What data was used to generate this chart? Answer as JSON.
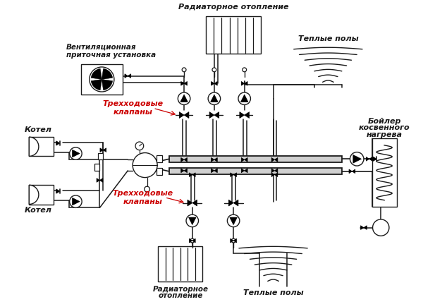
{
  "bg_color": "#ffffff",
  "lc": "#1a1a1a",
  "rc": "#cc0000",
  "lgc": "#d0d0d0",
  "labels": {
    "radiator_top": "Радиаторное отопление",
    "ventilation_line1": "Вентиляционная",
    "ventilation_line2": "приточная установка",
    "warm_floors_top": "Теплые полы",
    "boiler_indirect_line1": "Бойлер",
    "boiler_indirect_line2": "косвенного",
    "boiler_indirect_line3": "нагрева",
    "kotel1": "Котел",
    "kotel2": "Котел",
    "three_way_top_line1": "Трехходовые",
    "three_way_top_line2": "клапаны",
    "three_way_bot_line1": "Трехходовые",
    "three_way_bot_line2": "клапаны",
    "radiator_bot_line1": "Радиаторное",
    "radiator_bot_line2": "отопление",
    "warm_floors_bot": "Теплые полы"
  },
  "figsize": [
    6.0,
    4.28
  ],
  "dpi": 100
}
